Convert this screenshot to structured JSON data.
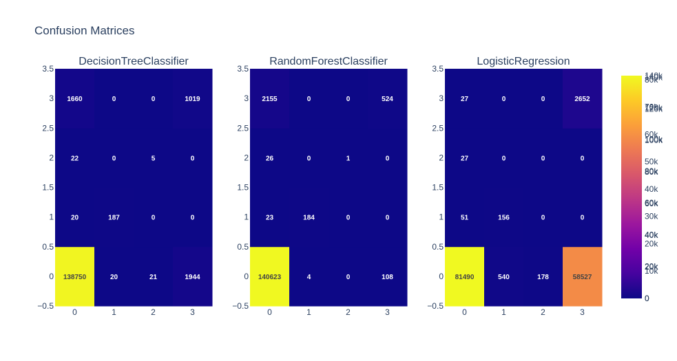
{
  "figure": {
    "title": "Confusion Matrices"
  },
  "colorscale": [
    "#0d0887",
    "#46039f",
    "#7201a8",
    "#9c179e",
    "#bd3786",
    "#d8576b",
    "#ed7953",
    "#fb9f3a",
    "#fdca26",
    "#f0f921"
  ],
  "chart_data": [
    {
      "type": "heatmap",
      "title": "DecisionTreeClassifier",
      "x": [
        0,
        1,
        2,
        3
      ],
      "y": [
        0,
        1,
        2,
        3
      ],
      "z": [
        [
          138750,
          20,
          21,
          1944
        ],
        [
          20,
          187,
          0,
          0
        ],
        [
          22,
          0,
          5,
          0
        ],
        [
          1660,
          0,
          0,
          1019
        ]
      ],
      "zmax": 140000,
      "x_ticks": [
        "0",
        "1",
        "2",
        "3"
      ],
      "y_ticks": [
        "−0.5",
        "0",
        "0.5",
        "1",
        "1.5",
        "2",
        "2.5",
        "3",
        "3.5"
      ],
      "colorbar_ticks": [
        "0",
        "20k",
        "40k",
        "60k",
        "80k",
        "100k",
        "120k",
        "140k"
      ]
    },
    {
      "type": "heatmap",
      "title": "RandomForestClassifier",
      "x": [
        0,
        1,
        2,
        3
      ],
      "y": [
        0,
        1,
        2,
        3
      ],
      "z": [
        [
          140623,
          4,
          0,
          108
        ],
        [
          23,
          184,
          0,
          0
        ],
        [
          26,
          0,
          1,
          0
        ],
        [
          2155,
          0,
          0,
          524
        ]
      ],
      "zmax": 141000,
      "x_ticks": [
        "0",
        "1",
        "2",
        "3"
      ],
      "y_ticks": [
        "−0.5",
        "0",
        "0.5",
        "1",
        "1.5",
        "2",
        "2.5",
        "3",
        "3.5"
      ],
      "colorbar_ticks": [
        "0",
        "20k",
        "40k",
        "60k",
        "80k",
        "100k",
        "120k",
        "140k"
      ]
    },
    {
      "type": "heatmap",
      "title": "LogisticRegression",
      "x": [
        0,
        1,
        2,
        3
      ],
      "y": [
        0,
        1,
        2,
        3
      ],
      "z": [
        [
          81490,
          540,
          178,
          58527
        ],
        [
          51,
          156,
          0,
          0
        ],
        [
          27,
          0,
          0,
          0
        ],
        [
          27,
          0,
          0,
          2652
        ]
      ],
      "zmax": 81490,
      "x_ticks": [
        "0",
        "1",
        "2",
        "3"
      ],
      "y_ticks": [
        "−0.5",
        "0",
        "0.5",
        "1",
        "1.5",
        "2",
        "2.5",
        "3",
        "3.5"
      ],
      "colorbar_ticks": [
        "0",
        "10k",
        "20k",
        "30k",
        "40k",
        "50k",
        "60k",
        "70k",
        "80k"
      ]
    }
  ]
}
